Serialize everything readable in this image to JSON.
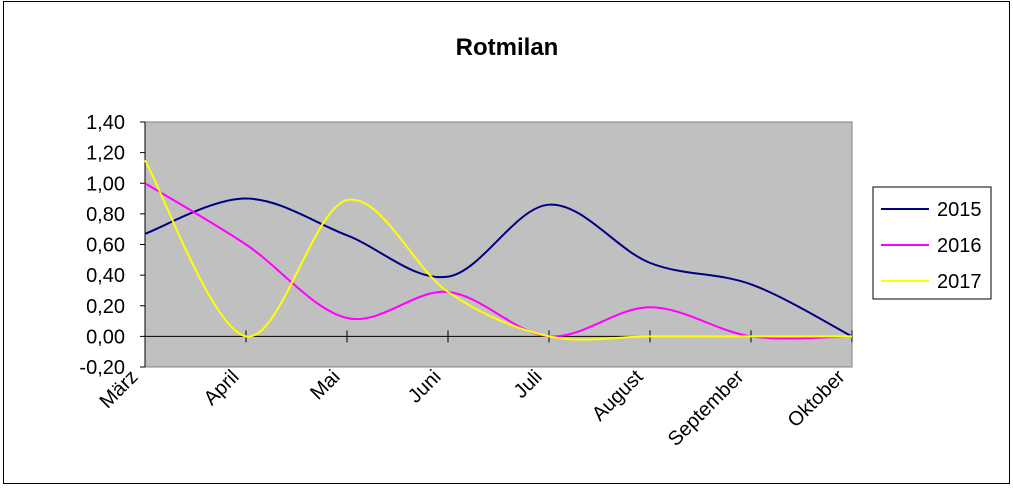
{
  "chart_data": {
    "type": "line",
    "title": "Rotmilan",
    "xlabel": "",
    "ylabel": "",
    "categories": [
      "März",
      "April",
      "Mai",
      "Juni",
      "Juli",
      "August",
      "September",
      "Oktober"
    ],
    "ylim": [
      -0.2,
      1.4
    ],
    "yticks": [
      -0.2,
      0.0,
      0.2,
      0.4,
      0.6,
      0.8,
      1.0,
      1.2,
      1.4
    ],
    "ytick_labels": [
      "-0,20",
      "0,00",
      "0,20",
      "0,40",
      "0,60",
      "0,80",
      "1,00",
      "1,20",
      "1,40"
    ],
    "grid": false,
    "smooth": true,
    "plot_background": "#c0c0c0",
    "legend_position": "right",
    "series": [
      {
        "name": "2015",
        "color": "#000080",
        "values": [
          0.67,
          0.9,
          0.66,
          0.39,
          0.86,
          0.48,
          0.34,
          0.0
        ]
      },
      {
        "name": "2016",
        "color": "#ff00ff",
        "values": [
          1.0,
          0.6,
          0.12,
          0.29,
          0.0,
          0.19,
          0.0,
          0.0
        ]
      },
      {
        "name": "2017",
        "color": "#ffff00",
        "values": [
          1.15,
          0.0,
          0.89,
          0.29,
          0.0,
          0.0,
          0.0,
          0.0
        ]
      }
    ]
  }
}
